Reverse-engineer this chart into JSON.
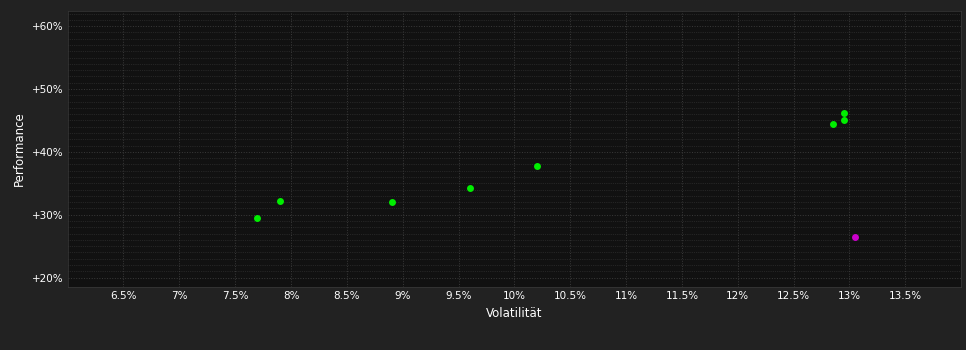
{
  "background_color": "#222222",
  "plot_bg_color": "#111111",
  "grid_color": "#3a3a3a",
  "text_color": "#ffffff",
  "xlabel": "Volatilität",
  "ylabel": "Performance",
  "xlim": [
    0.06,
    0.14
  ],
  "ylim": [
    0.185,
    0.625
  ],
  "xticks": [
    0.065,
    0.07,
    0.075,
    0.08,
    0.085,
    0.09,
    0.095,
    0.1,
    0.105,
    0.11,
    0.115,
    0.12,
    0.125,
    0.13,
    0.135
  ],
  "yticks": [
    0.2,
    0.3,
    0.4,
    0.5,
    0.6
  ],
  "yminor_ticks": [
    0.21,
    0.22,
    0.23,
    0.24,
    0.25,
    0.26,
    0.27,
    0.28,
    0.29,
    0.31,
    0.32,
    0.33,
    0.34,
    0.35,
    0.36,
    0.37,
    0.38,
    0.39,
    0.41,
    0.42,
    0.43,
    0.44,
    0.45,
    0.46,
    0.47,
    0.48,
    0.49,
    0.51,
    0.52,
    0.53,
    0.54,
    0.55,
    0.56,
    0.57,
    0.58,
    0.59,
    0.61,
    0.62
  ],
  "green_points": [
    [
      0.079,
      0.322
    ],
    [
      0.077,
      0.295
    ],
    [
      0.089,
      0.32
    ],
    [
      0.096,
      0.342
    ],
    [
      0.102,
      0.377
    ],
    [
      0.1295,
      0.462
    ],
    [
      0.1295,
      0.451
    ],
    [
      0.1285,
      0.445
    ]
  ],
  "magenta_points": [
    [
      0.1305,
      0.264
    ]
  ],
  "green_color": "#00ee00",
  "magenta_color": "#cc00cc",
  "point_size": 25,
  "tick_fontsize": 7.5,
  "label_fontsize": 8.5
}
